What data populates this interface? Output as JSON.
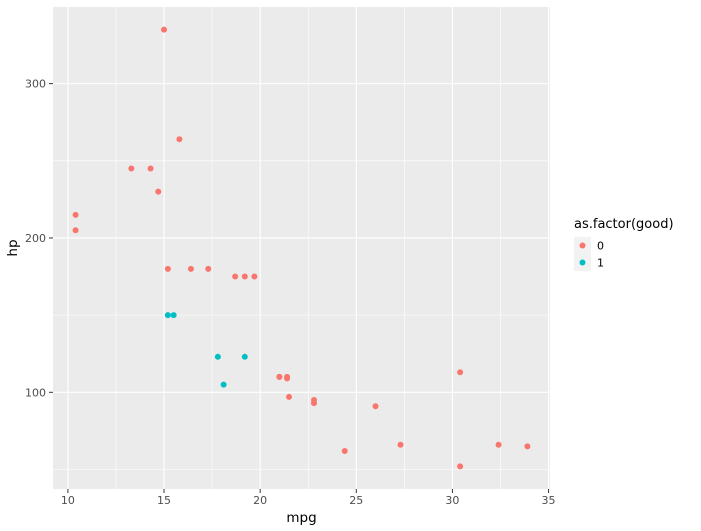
{
  "chart_data": {
    "type": "scatter",
    "xlabel": "mpg",
    "ylabel": "hp",
    "xlim": [
      9.225,
      35.075
    ],
    "ylim": [
      37.35,
      349.65
    ],
    "x_ticks": [
      10,
      15,
      20,
      25,
      30,
      35
    ],
    "x_minor_ticks": [
      12.5,
      17.5,
      22.5,
      27.5,
      32.5
    ],
    "y_ticks": [
      100,
      200,
      300
    ],
    "y_minor_ticks": [
      50,
      150,
      250
    ],
    "grid": true,
    "legend": {
      "title": "as.factor(good)",
      "position": "right",
      "entries": [
        {
          "label": "0",
          "color": "#F8766D"
        },
        {
          "label": "1",
          "color": "#00BFC4"
        }
      ]
    },
    "series": [
      {
        "name": "0",
        "color": "#F8766D",
        "points": [
          [
            21.0,
            110
          ],
          [
            21.0,
            110
          ],
          [
            22.8,
            93
          ],
          [
            21.4,
            110
          ],
          [
            18.7,
            175
          ],
          [
            14.3,
            245
          ],
          [
            24.4,
            62
          ],
          [
            22.8,
            95
          ],
          [
            16.4,
            180
          ],
          [
            17.3,
            180
          ],
          [
            15.2,
            180
          ],
          [
            10.4,
            205
          ],
          [
            10.4,
            215
          ],
          [
            14.7,
            230
          ],
          [
            32.4,
            66
          ],
          [
            30.4,
            52
          ],
          [
            33.9,
            65
          ],
          [
            21.5,
            97
          ],
          [
            13.3,
            245
          ],
          [
            19.2,
            175
          ],
          [
            27.3,
            66
          ],
          [
            26.0,
            91
          ],
          [
            30.4,
            113
          ],
          [
            15.8,
            264
          ],
          [
            19.7,
            175
          ],
          [
            15.0,
            335
          ],
          [
            21.4,
            109
          ]
        ]
      },
      {
        "name": "1",
        "color": "#00BFC4",
        "points": [
          [
            18.1,
            105
          ],
          [
            19.2,
            123
          ],
          [
            17.8,
            123
          ],
          [
            15.5,
            150
          ],
          [
            15.2,
            150
          ]
        ]
      }
    ]
  }
}
